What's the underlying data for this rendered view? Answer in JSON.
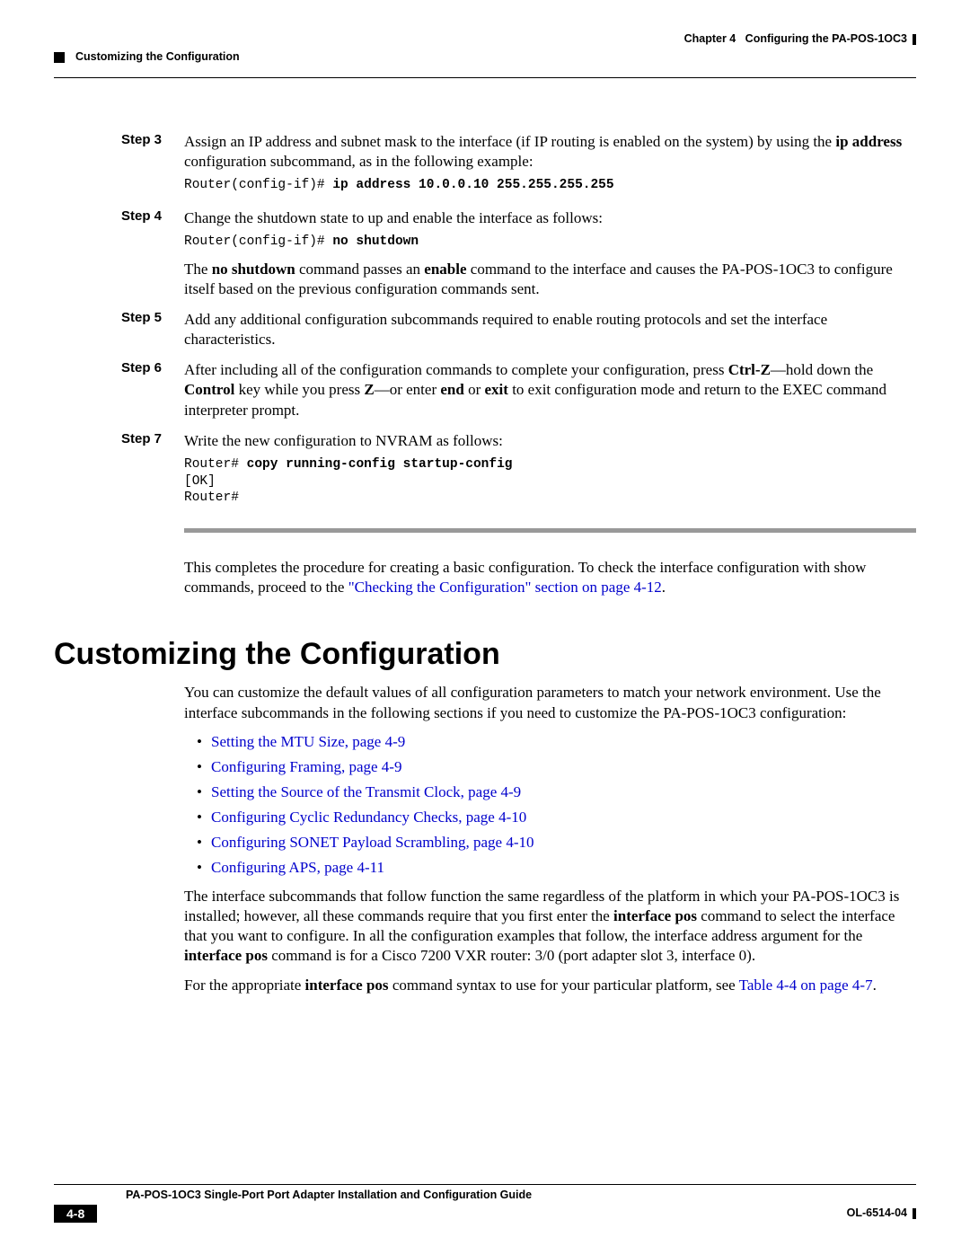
{
  "header": {
    "chapter": "Chapter 4",
    "chapter_title": "Configuring the PA-POS-1OC3",
    "section": "Customizing the Configuration"
  },
  "steps": {
    "s3": {
      "label": "Step 3",
      "text_pre": "Assign an IP address and subnet mask to the interface (if IP routing is enabled on the system) by using the ",
      "bold1": "ip address",
      "text_post": " configuration subcommand, as in the following example:",
      "code_prompt": "Router(config-if)# ",
      "code_cmd": "ip address 10.0.0.10 255.255.255.255"
    },
    "s4": {
      "label": "Step 4",
      "text1": "Change the shutdown state to up and enable the interface as follows:",
      "code_prompt": "Router(config-if)# ",
      "code_cmd": "no shutdown",
      "p2_a": "The ",
      "p2_b1": "no shutdown",
      "p2_b": " command passes an ",
      "p2_b2": "enable",
      "p2_c": " command to the interface and causes the PA-POS-1OC3 to configure itself based on the previous configuration commands sent."
    },
    "s5": {
      "label": "Step 5",
      "text": "Add any additional configuration subcommands required to enable routing protocols and set the interface characteristics."
    },
    "s6": {
      "label": "Step 6",
      "a": "After including all of the configuration commands to complete your configuration, press ",
      "b1": "Ctrl-Z",
      "b": "—hold down the ",
      "b2": "Control",
      "c": " key while you press ",
      "b3": "Z",
      "d": "—or enter ",
      "b4": "end",
      "e": " or ",
      "b5": "exit",
      "f": " to exit configuration mode and return to the EXEC command interpreter prompt."
    },
    "s7": {
      "label": "Step 7",
      "text": "Write the new configuration to NVRAM as follows:",
      "code_l1a": "Router# ",
      "code_l1b": "copy running-config startup-config",
      "code_l2": "[OK]",
      "code_l3": "Router#"
    }
  },
  "closing": {
    "a": "This completes the procedure for creating a basic configuration. To check the interface configuration with show commands, proceed to the ",
    "link": "\"Checking the Configuration\" section on page 4-12",
    "b": "."
  },
  "section": {
    "heading": "Customizing the Configuration",
    "intro": "You can customize the default values of all configuration parameters to match your network environment. Use the interface subcommands in the following sections if you need to customize the PA-POS-1OC3 configuration:",
    "links": [
      "Setting the MTU Size, page 4-9",
      "Configuring Framing, page 4-9",
      "Setting the Source of the Transmit Clock, page 4-9",
      "Configuring Cyclic Redundancy Checks, page 4-10",
      "Configuring SONET Payload Scrambling, page 4-10",
      "Configuring APS, page 4-11"
    ],
    "p2_a": "The interface subcommands that follow function the same regardless of the platform in which your PA-POS-1OC3 is installed; however, all these commands require that you first enter the ",
    "p2_b1": "interface pos",
    "p2_b": " command to select the interface that you want to configure. In all the configuration examples that follow, the interface address argument for the ",
    "p2_b2": "interface pos",
    "p2_c": " command is for a Cisco 7200 VXR router: 3/0 (port adapter slot 3, interface 0).",
    "p3_a": "For the appropriate ",
    "p3_b1": "interface pos",
    "p3_b": " command syntax to use for your particular platform, see ",
    "p3_link": "Table 4-4 on page 4-7",
    "p3_c": "."
  },
  "footer": {
    "title": "PA-POS-1OC3 Single-Port Port Adapter Installation and Configuration Guide",
    "page": "4-8",
    "doc": "OL-6514-04"
  }
}
